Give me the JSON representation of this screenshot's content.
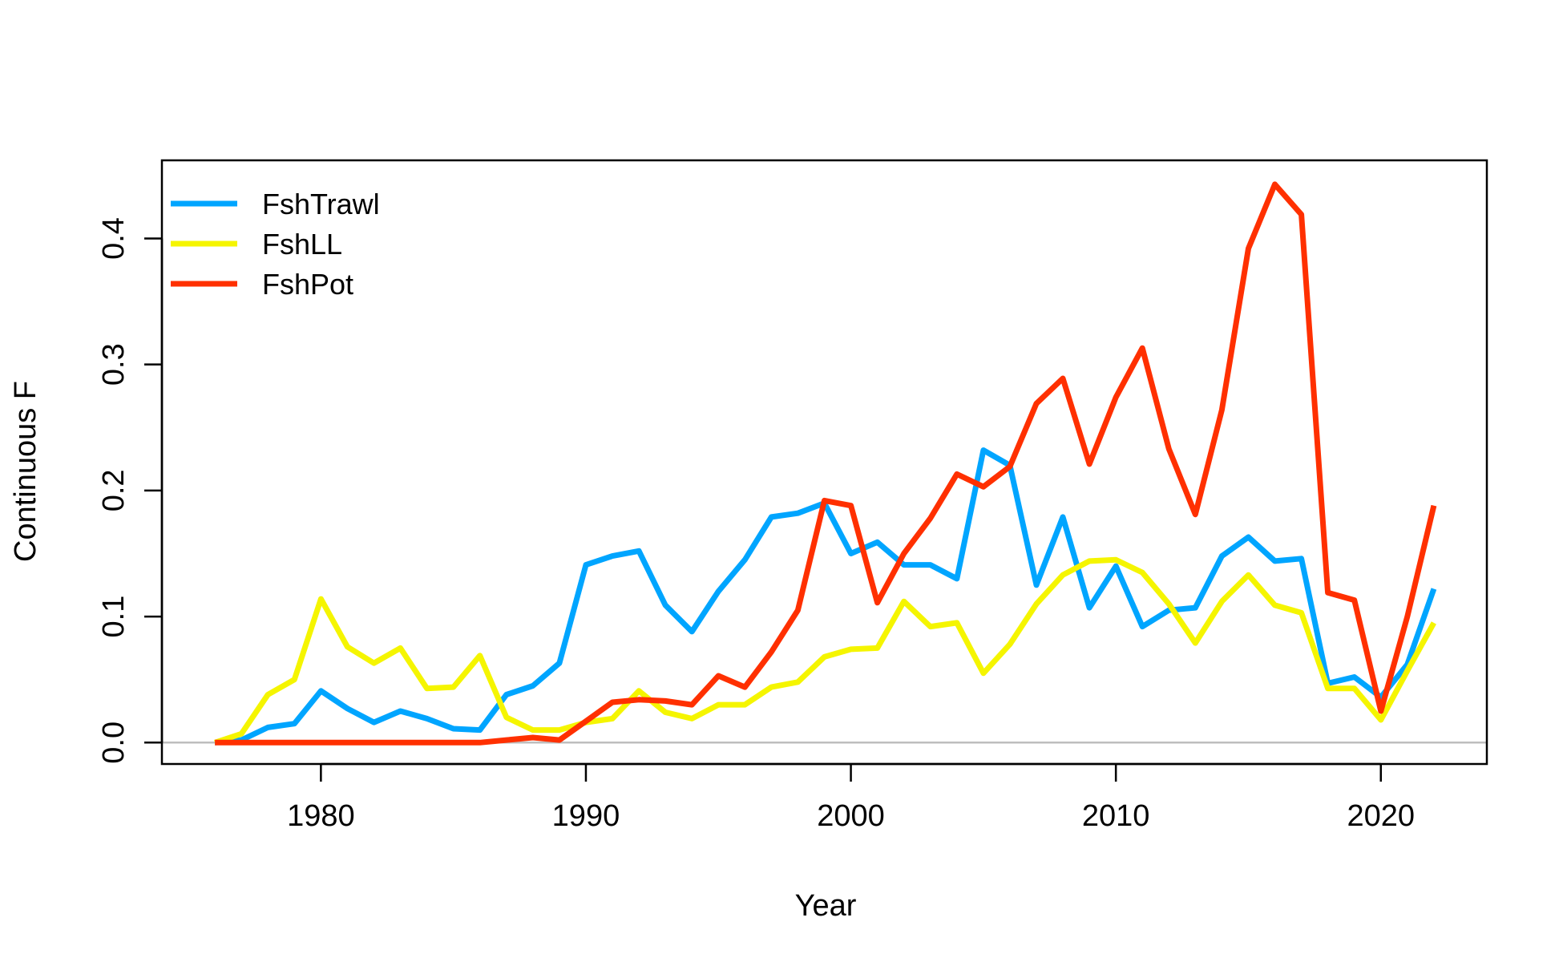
{
  "chart_data": {
    "type": "line",
    "title": "",
    "xlabel": "Year",
    "ylabel": "Continuous F",
    "xlim": [
      1974,
      2024
    ],
    "ylim": [
      -0.017,
      0.462
    ],
    "x_ticks": [
      1980,
      1990,
      2000,
      2010,
      2020
    ],
    "x_tick_labels": [
      "1980",
      "1990",
      "2000",
      "2010",
      "2020"
    ],
    "y_ticks": [
      0.0,
      0.1,
      0.2,
      0.3,
      0.4
    ],
    "y_tick_labels": [
      "0.0",
      "0.1",
      "0.2",
      "0.3",
      "0.4"
    ],
    "reference_line": {
      "y": 0,
      "color": "#bebebe"
    },
    "grid": false,
    "legend_position": "top-left",
    "x": [
      1976,
      1977,
      1978,
      1979,
      1980,
      1981,
      1982,
      1983,
      1984,
      1985,
      1986,
      1987,
      1988,
      1989,
      1990,
      1991,
      1992,
      1993,
      1994,
      1995,
      1996,
      1997,
      1998,
      1999,
      2000,
      2001,
      2002,
      2003,
      2004,
      2005,
      2006,
      2007,
      2008,
      2009,
      2010,
      2011,
      2012,
      2013,
      2014,
      2015,
      2016,
      2017,
      2018,
      2019,
      2020,
      2021,
      2022
    ],
    "series": [
      {
        "name": "FshTrawl",
        "color": "#00a5ff",
        "values": [
          0.0,
          0.002,
          0.012,
          0.015,
          0.041,
          0.027,
          0.016,
          0.025,
          0.019,
          0.011,
          0.01,
          0.038,
          0.045,
          0.063,
          0.141,
          0.148,
          0.152,
          0.109,
          0.088,
          0.12,
          0.145,
          0.179,
          0.182,
          0.19,
          0.15,
          0.159,
          0.141,
          0.141,
          0.13,
          0.232,
          0.22,
          0.125,
          0.179,
          0.107,
          0.14,
          0.092,
          0.105,
          0.107,
          0.148,
          0.163,
          0.144,
          0.146,
          0.047,
          0.052,
          0.036,
          0.062,
          0.122
        ]
      },
      {
        "name": "FshLL",
        "color": "#f5f500",
        "values": [
          0.0,
          0.007,
          0.038,
          0.05,
          0.114,
          0.076,
          0.063,
          0.075,
          0.043,
          0.044,
          0.069,
          0.02,
          0.01,
          0.01,
          0.016,
          0.019,
          0.041,
          0.024,
          0.019,
          0.03,
          0.03,
          0.044,
          0.048,
          0.068,
          0.074,
          0.075,
          0.112,
          0.092,
          0.095,
          0.055,
          0.078,
          0.11,
          0.133,
          0.144,
          0.145,
          0.135,
          0.11,
          0.079,
          0.112,
          0.133,
          0.109,
          0.103,
          0.043,
          0.043,
          0.018,
          0.057,
          0.095
        ]
      },
      {
        "name": "FshPot",
        "color": "#ff3000",
        "values": [
          0.0,
          0.0,
          0.0,
          0.0,
          0.0,
          0.0,
          0.0,
          0.0,
          0.0,
          0.0,
          0.0,
          0.002,
          0.004,
          0.002,
          0.017,
          0.032,
          0.034,
          0.033,
          0.03,
          0.053,
          0.044,
          0.072,
          0.105,
          0.192,
          0.188,
          0.111,
          0.15,
          0.178,
          0.213,
          0.203,
          0.219,
          0.269,
          0.289,
          0.221,
          0.274,
          0.313,
          0.233,
          0.181,
          0.264,
          0.392,
          0.443,
          0.419,
          0.119,
          0.113,
          0.025,
          0.1,
          0.188
        ]
      }
    ]
  }
}
